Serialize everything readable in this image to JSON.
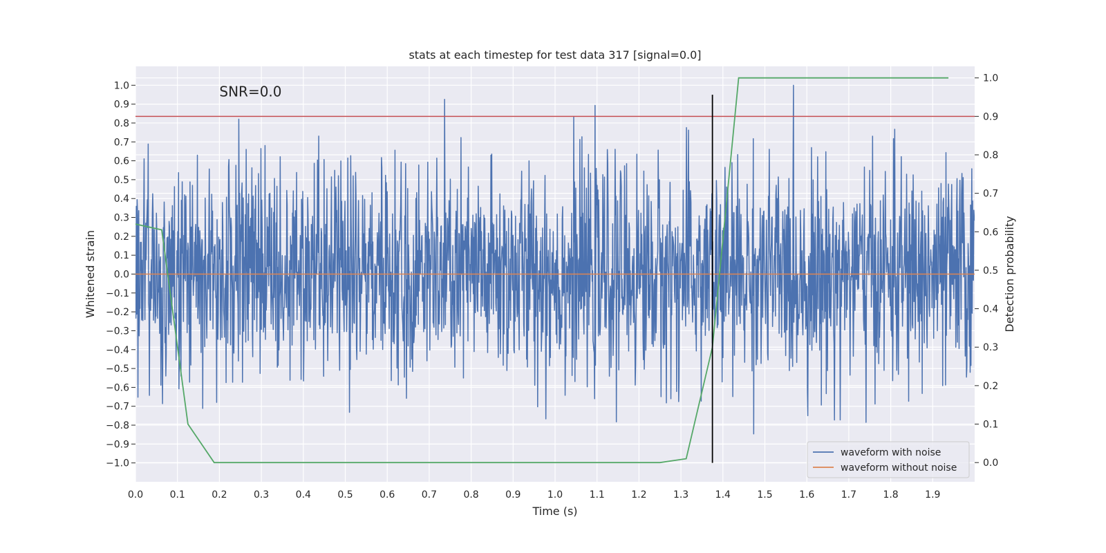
{
  "chart_data": {
    "type": "line",
    "title": "stats at each timestep for test data 317 [signal=0.0]",
    "xlabel": "Time (s)",
    "ylabel": "Whitened strain",
    "y2label": "Detection probability",
    "annotation": "SNR=0.0",
    "xlim": [
      0.0,
      2.0
    ],
    "ylim": [
      -1.1,
      1.1
    ],
    "y2lim": [
      -0.05,
      1.03
    ],
    "xticks": [
      0.0,
      0.1,
      0.2,
      0.3,
      0.4,
      0.5,
      0.6,
      0.7,
      0.8,
      0.9,
      1.0,
      1.1,
      1.2,
      1.3,
      1.4,
      1.5,
      1.6,
      1.7,
      1.8,
      1.9
    ],
    "xtick_labels": [
      "0.0",
      "0.1",
      "0.2",
      "0.3",
      "0.4",
      "0.5",
      "0.6",
      "0.7",
      "0.8",
      "0.9",
      "1.0",
      "1.1",
      "1.2",
      "1.3",
      "1.4",
      "1.5",
      "1.6",
      "1.7",
      "1.8",
      "1.9"
    ],
    "yticks": [
      1.0,
      0.9,
      0.8,
      0.7,
      0.6,
      0.5,
      0.4,
      0.3,
      0.2,
      0.1,
      0.0,
      -0.1,
      -0.2,
      -0.3,
      -0.4,
      -0.5,
      -0.6,
      -0.7,
      -0.8,
      -0.9,
      -1.0
    ],
    "ytick_labels": [
      "1.0",
      "0.9",
      "0.8",
      "0.7",
      "0.6",
      "0.5",
      "0.4",
      "0.3",
      "0.2",
      "0.1",
      "0.0",
      "−0.1",
      "−0.2",
      "−0.3",
      "−0.4",
      "−0.5",
      "−0.6",
      "−0.7",
      "−0.8",
      "−0.9",
      "−1.0"
    ],
    "y2ticks": [
      1.0,
      0.9,
      0.8,
      0.7,
      0.6,
      0.5,
      0.4,
      0.3,
      0.2,
      0.1,
      0.0
    ],
    "y2tick_labels": [
      "1.0",
      "0.9",
      "0.8",
      "0.7",
      "0.6",
      "0.5",
      "0.4",
      "0.3",
      "0.2",
      "0.1",
      "0.0"
    ],
    "noise_series": {
      "name": "waveform with noise",
      "color": "#4c72b0",
      "x_range": [
        0.0,
        2.0
      ],
      "n_samples": 2048,
      "amplitude_std": 0.28,
      "clip": [
        -1.0,
        1.0
      ]
    },
    "clean_series": {
      "name": "waveform without noise",
      "color": "#dd8452",
      "x": [
        0.0,
        2.0
      ],
      "y": [
        0.0,
        0.0
      ]
    },
    "detection_series": {
      "name": "Detection probability",
      "color": "#55a868",
      "x": [
        0.0,
        0.0625,
        0.125,
        0.1875,
        0.25,
        0.5,
        0.75,
        1.0,
        1.25,
        1.3125,
        1.375,
        1.4375,
        1.5,
        1.9375
      ],
      "y": [
        0.62,
        0.605,
        0.1,
        0.0,
        0.0,
        0.0,
        0.0,
        0.0,
        0.0,
        0.01,
        0.3,
        1.0,
        1.0,
        1.0
      ]
    },
    "threshold": {
      "y2": 0.9,
      "color": "#c44e52"
    },
    "marker_line": {
      "x": 1.375,
      "y_from": -1.0,
      "y_to": 0.95,
      "color": "#000000"
    },
    "legend": {
      "position": "lower-right",
      "entries": [
        {
          "label": "waveform with noise",
          "color": "#4c72b0"
        },
        {
          "label": "waveform without noise",
          "color": "#dd8452"
        }
      ]
    },
    "background": "#eaeaf2",
    "grid": true
  }
}
